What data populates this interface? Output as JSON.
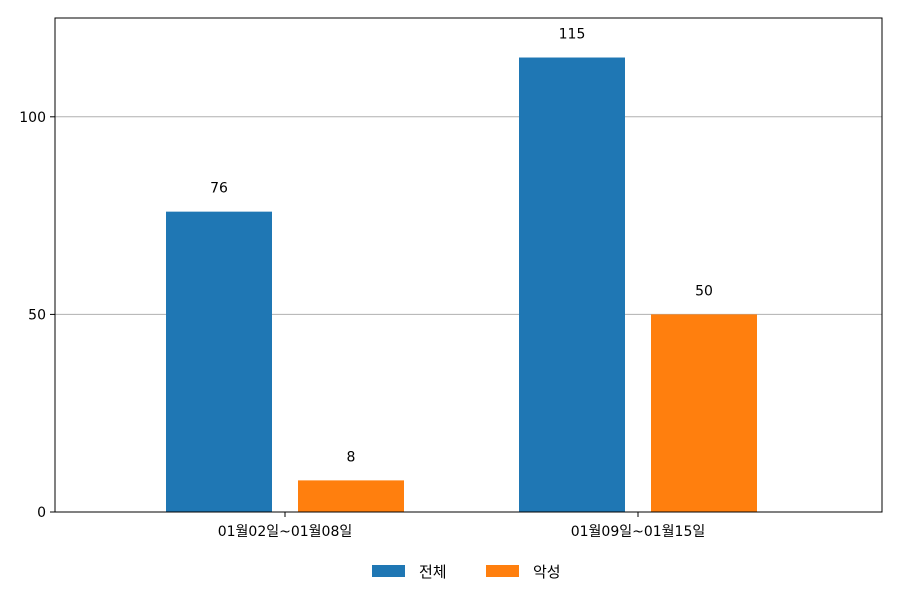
{
  "chart_data": {
    "type": "bar",
    "categories": [
      "01월02일~01월08일",
      "01월09일~01월15일"
    ],
    "series": [
      {
        "name": "전체",
        "values": [
          76,
          115
        ],
        "color": "#1f77b4"
      },
      {
        "name": "악성",
        "values": [
          8,
          50
        ],
        "color": "#ff7f0e"
      }
    ],
    "ylim": [
      0,
      125
    ],
    "yticks": [
      0,
      50,
      100
    ],
    "grid": "y",
    "legend": "bottom-center"
  }
}
